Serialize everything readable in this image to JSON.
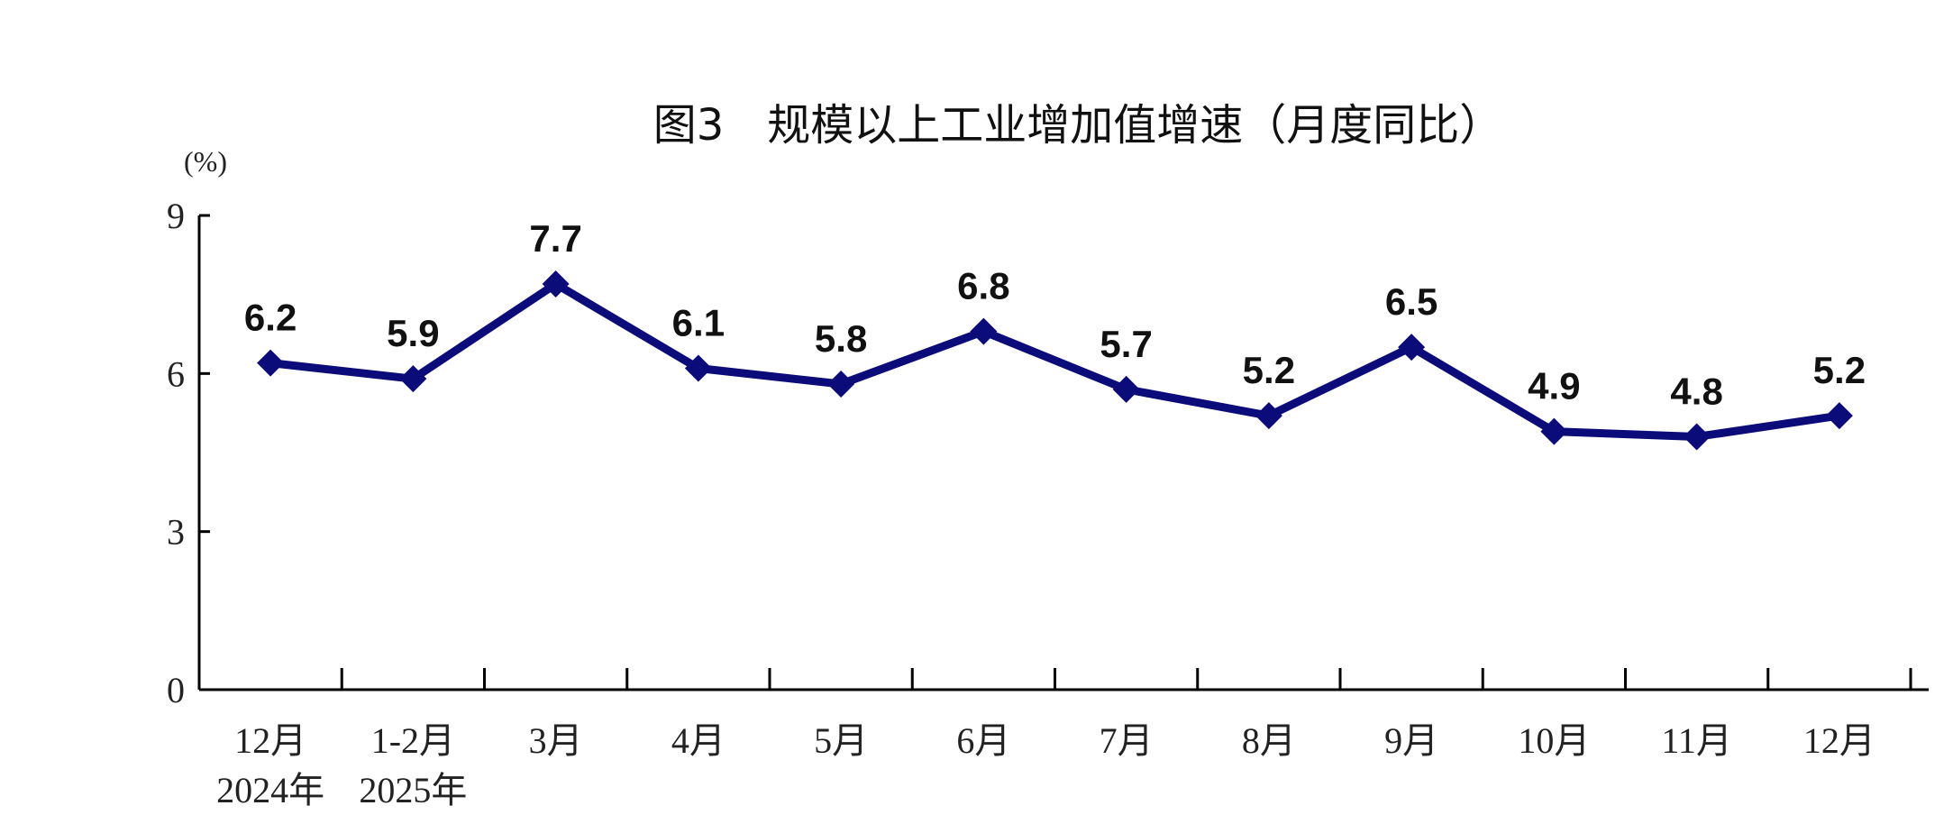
{
  "chart_data": {
    "type": "line",
    "title": "图3　规模以上工业增加值增速（月度同比）",
    "ylabel": "(%)",
    "categories": [
      "12月",
      "1-2月",
      "3月",
      "4月",
      "5月",
      "6月",
      "7月",
      "8月",
      "9月",
      "10月",
      "11月",
      "12月"
    ],
    "year_labels": [
      "2024年",
      "2025年"
    ],
    "values": [
      6.2,
      5.9,
      7.7,
      6.1,
      5.8,
      6.8,
      5.7,
      5.2,
      6.5,
      4.9,
      4.8,
      5.2
    ],
    "data_labels": [
      "6.2",
      "5.9",
      "7.7",
      "6.1",
      "5.8",
      "6.8",
      "5.7",
      "5.2",
      "6.5",
      "4.9",
      "4.8",
      "5.2"
    ],
    "yticks": [
      "0",
      "3",
      "6",
      "9"
    ],
    "ylim": [
      0,
      9
    ],
    "grid": false,
    "marker": "diamond",
    "colors": {
      "line": "#0b0b7a",
      "axis": "#000000"
    }
  }
}
